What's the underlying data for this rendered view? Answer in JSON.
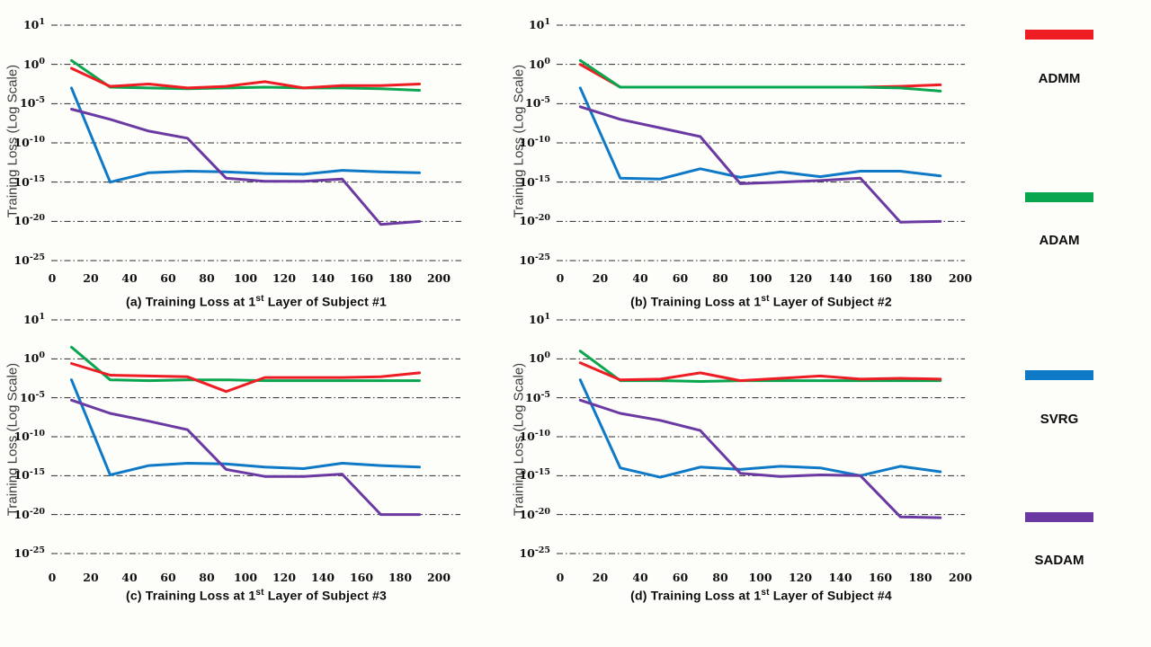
{
  "axes": {
    "ylabel": "Training Loss (Log Scale)",
    "y_tick_exponents": [
      1,
      0,
      -5,
      -10,
      -15,
      -20,
      -25
    ],
    "x_ticks": [
      0,
      20,
      40,
      60,
      80,
      100,
      120,
      140,
      160,
      180,
      200
    ],
    "x_range": [
      0,
      200
    ],
    "grid": "dash-dot horizontal gridlines, no axis spines",
    "scale_note": "log scale: ticks at 10^1, 10^0, then every 5 decades down to 10^-25"
  },
  "legend": {
    "position": "right column",
    "entries": [
      {
        "label": "ADMM",
        "color": "#ee1c23"
      },
      {
        "label": "ADAM",
        "color": "#0aa64f"
      },
      {
        "label": "SVRG",
        "color": "#0e79c6"
      },
      {
        "label": "SADAM",
        "color": "#6a3aa2"
      }
    ]
  },
  "chart_data": [
    {
      "id": "a",
      "type": "line",
      "caption": {
        "prefix": "(a)",
        "main": " Training Loss at 1",
        "sup": "st",
        "rest": " Layer of Subject #1"
      },
      "x": [
        10,
        30,
        50,
        70,
        90,
        110,
        130,
        150,
        170,
        190
      ],
      "series": [
        {
          "name": "SVRG",
          "color": "#0e79c6",
          "log10_loss": [
            -3.0,
            -15.0,
            -13.8,
            -13.6,
            -13.7,
            -13.9,
            -14.0,
            -13.5,
            -13.7,
            -13.8
          ]
        },
        {
          "name": "SADAM",
          "color": "#6a3aa2",
          "log10_loss": [
            -5.7,
            -7.0,
            -8.5,
            -9.4,
            -14.5,
            -14.9,
            -14.9,
            -14.6,
            -20.4,
            -20.0
          ]
        },
        {
          "name": "ADAM",
          "color": "#0aa64f",
          "log10_loss": [
            0.1,
            -2.9,
            -3.0,
            -3.1,
            -3.0,
            -2.9,
            -3.0,
            -3.0,
            -3.1,
            -3.3
          ]
        },
        {
          "name": "ADMM",
          "color": "#ee1c23",
          "log10_loss": [
            -0.5,
            -2.8,
            -2.5,
            -3.0,
            -2.8,
            -2.2,
            -3.0,
            -2.7,
            -2.7,
            -2.5
          ]
        }
      ]
    },
    {
      "id": "b",
      "type": "line",
      "caption": {
        "prefix": "(b)",
        "main": " Training Loss at 1",
        "sup": "st",
        "rest": " Layer of Subject #2"
      },
      "x": [
        10,
        30,
        50,
        70,
        90,
        110,
        130,
        150,
        170,
        190
      ],
      "series": [
        {
          "name": "SVRG",
          "color": "#0e79c6",
          "log10_loss": [
            -3.0,
            -14.5,
            -14.6,
            -13.3,
            -14.4,
            -13.7,
            -14.3,
            -13.6,
            -13.6,
            -14.2
          ]
        },
        {
          "name": "SADAM",
          "color": "#6a3aa2",
          "log10_loss": [
            -5.4,
            -7.0,
            -8.1,
            -9.2,
            -15.2,
            -15.0,
            -14.8,
            -14.5,
            -20.1,
            -20.0
          ]
        },
        {
          "name": "ADMM",
          "color": "#ee1c23",
          "log10_loss": [
            0.0,
            -2.9,
            -2.9,
            -2.9,
            -2.9,
            -2.9,
            -2.9,
            -2.9,
            -2.8,
            -2.6
          ]
        },
        {
          "name": "ADAM",
          "color": "#0aa64f",
          "log10_loss": [
            0.1,
            -2.9,
            -2.9,
            -2.9,
            -2.9,
            -2.9,
            -2.9,
            -2.9,
            -3.0,
            -3.4
          ]
        }
      ]
    },
    {
      "id": "c",
      "type": "line",
      "caption": {
        "prefix": "(c)",
        "main": " Training Loss at 1",
        "sup": "st",
        "rest": " Layer of Subject #3"
      },
      "x": [
        10,
        30,
        50,
        70,
        90,
        110,
        130,
        150,
        170,
        190
      ],
      "series": [
        {
          "name": "SVRG",
          "color": "#0e79c6",
          "log10_loss": [
            -2.7,
            -14.9,
            -13.7,
            -13.4,
            -13.5,
            -13.9,
            -14.1,
            -13.4,
            -13.7,
            -13.9
          ]
        },
        {
          "name": "SADAM",
          "color": "#6a3aa2",
          "log10_loss": [
            -5.3,
            -7.0,
            -8.0,
            -9.1,
            -14.2,
            -15.1,
            -15.1,
            -14.8,
            -20.0,
            -20.0
          ]
        },
        {
          "name": "ADAM",
          "color": "#0aa64f",
          "log10_loss": [
            0.3,
            -2.7,
            -2.8,
            -2.7,
            -2.7,
            -2.8,
            -2.8,
            -2.8,
            -2.8,
            -2.8
          ]
        },
        {
          "name": "ADMM",
          "color": "#ee1c23",
          "log10_loss": [
            -0.6,
            -2.1,
            -2.2,
            -2.3,
            -4.2,
            -2.4,
            -2.4,
            -2.4,
            -2.3,
            -1.8
          ]
        }
      ]
    },
    {
      "id": "d",
      "type": "line",
      "caption": {
        "prefix": "(d)",
        "main": " Training Loss at 1",
        "sup": "st",
        "rest": " Layer of Subject #4"
      },
      "x": [
        10,
        30,
        50,
        70,
        90,
        110,
        130,
        150,
        170,
        190
      ],
      "series": [
        {
          "name": "SVRG",
          "color": "#0e79c6",
          "log10_loss": [
            -2.7,
            -14.0,
            -15.2,
            -13.9,
            -14.2,
            -13.8,
            -14.0,
            -15.0,
            -13.8,
            -14.5
          ]
        },
        {
          "name": "SADAM",
          "color": "#6a3aa2",
          "log10_loss": [
            -5.3,
            -7.0,
            -7.9,
            -9.2,
            -14.7,
            -15.1,
            -14.9,
            -15.0,
            -20.3,
            -20.4
          ]
        },
        {
          "name": "ADAM",
          "color": "#0aa64f",
          "log10_loss": [
            0.2,
            -2.8,
            -2.8,
            -2.9,
            -2.8,
            -2.8,
            -2.8,
            -2.8,
            -2.8,
            -2.8
          ]
        },
        {
          "name": "ADMM",
          "color": "#ee1c23",
          "log10_loss": [
            -0.5,
            -2.7,
            -2.6,
            -1.8,
            -2.8,
            -2.5,
            -2.2,
            -2.6,
            -2.5,
            -2.6
          ]
        }
      ]
    }
  ]
}
